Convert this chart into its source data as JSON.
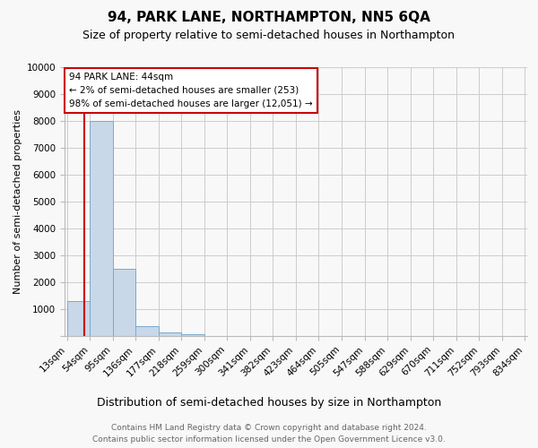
{
  "title": "94, PARK LANE, NORTHAMPTON, NN5 6QA",
  "subtitle": "Size of property relative to semi-detached houses in Northampton",
  "xlabel": "Distribution of semi-detached houses by size in Northampton",
  "ylabel": "Number of semi-detached properties",
  "bin_labels": [
    "13sqm",
    "54sqm",
    "95sqm",
    "136sqm",
    "177sqm",
    "218sqm",
    "259sqm",
    "300sqm",
    "341sqm",
    "382sqm",
    "423sqm",
    "464sqm",
    "505sqm",
    "547sqm",
    "588sqm",
    "629sqm",
    "670sqm",
    "711sqm",
    "752sqm",
    "793sqm",
    "834sqm"
  ],
  "bar_heights": [
    1300,
    8000,
    2500,
    380,
    130,
    80,
    0,
    0,
    0,
    0,
    0,
    0,
    0,
    0,
    0,
    0,
    0,
    0,
    0,
    0
  ],
  "bar_color": "#c8d8e8",
  "bar_edge_color": "#7aaacc",
  "bin_edges": [
    13,
    54,
    95,
    136,
    177,
    218,
    259,
    300,
    341,
    382,
    423,
    464,
    505,
    547,
    588,
    629,
    670,
    711,
    752,
    793,
    834
  ],
  "property_sqm": 44,
  "property_line_color": "#cc0000",
  "annotation_text_line1": "94 PARK LANE: 44sqm",
  "annotation_text_line2": "← 2% of semi-detached houses are smaller (253)",
  "annotation_text_line3": "98% of semi-detached houses are larger (12,051) →",
  "annotation_box_color": "#ffffff",
  "annotation_box_edge_color": "#cc0000",
  "ylim": [
    0,
    10000
  ],
  "yticks": [
    0,
    1000,
    2000,
    3000,
    4000,
    5000,
    6000,
    7000,
    8000,
    9000,
    10000
  ],
  "footer_line1": "Contains HM Land Registry data © Crown copyright and database right 2024.",
  "footer_line2": "Contains public sector information licensed under the Open Government Licence v3.0.",
  "background_color": "#f8f8f8",
  "grid_color": "#cccccc",
  "title_fontsize": 11,
  "subtitle_fontsize": 9,
  "xlabel_fontsize": 9,
  "ylabel_fontsize": 8,
  "tick_fontsize": 7.5,
  "footer_fontsize": 6.5
}
